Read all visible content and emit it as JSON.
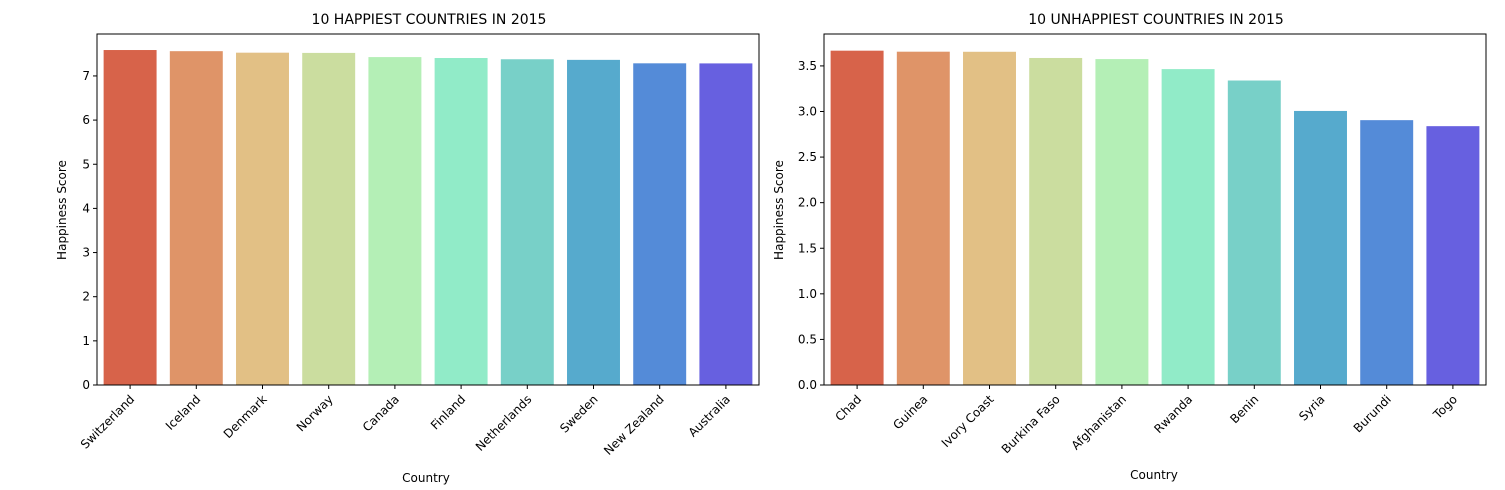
{
  "chart_data": [
    {
      "type": "bar",
      "title": "10 HAPPIEST COUNTRIES IN 2015",
      "xlabel": "Country",
      "ylabel": "Happiness Score",
      "categories": [
        "Switzerland",
        "Iceland",
        "Denmark",
        "Norway",
        "Canada",
        "Finland",
        "Netherlands",
        "Sweden",
        "New Zealand",
        "Australia"
      ],
      "values": [
        7.587,
        7.561,
        7.527,
        7.522,
        7.427,
        7.406,
        7.378,
        7.364,
        7.286,
        7.284
      ],
      "ylim": [
        0,
        7.95
      ],
      "yticks": [
        0,
        1,
        2,
        3,
        4,
        5,
        6,
        7
      ],
      "ytick_labels": [
        "0",
        "1",
        "2",
        "3",
        "4",
        "5",
        "6",
        "7"
      ],
      "colors": [
        "#d7634a",
        "#df9468",
        "#e2c085",
        "#cbdd9f",
        "#b4efb6",
        "#91ebc8",
        "#78d0c8",
        "#56aacd",
        "#548bd8",
        "#6760e0"
      ],
      "grid": false,
      "legend": "none"
    },
    {
      "type": "bar",
      "title": "10 UNHAPPIEST COUNTRIES IN 2015",
      "xlabel": "Country",
      "ylabel": "Happiness Score",
      "categories": [
        "Chad",
        "Guinea",
        "Ivory Coast",
        "Burkina Faso",
        "Afghanistan",
        "Rwanda",
        "Benin",
        "Syria",
        "Burundi",
        "Togo"
      ],
      "values": [
        3.667,
        3.656,
        3.655,
        3.587,
        3.575,
        3.465,
        3.34,
        3.006,
        2.905,
        2.839
      ],
      "ylim": [
        0,
        3.85
      ],
      "yticks": [
        0,
        0.5,
        1,
        1.5,
        2,
        2.5,
        3,
        3.5
      ],
      "ytick_labels": [
        "0.0",
        "0.5",
        "1.0",
        "1.5",
        "2.0",
        "2.5",
        "3.0",
        "3.5"
      ],
      "colors": [
        "#d7634a",
        "#df9468",
        "#e2c085",
        "#cbdd9f",
        "#b4efb6",
        "#91ebc8",
        "#78d0c8",
        "#56aacd",
        "#548bd8",
        "#6760e0"
      ],
      "grid": false,
      "legend": "none"
    }
  ]
}
